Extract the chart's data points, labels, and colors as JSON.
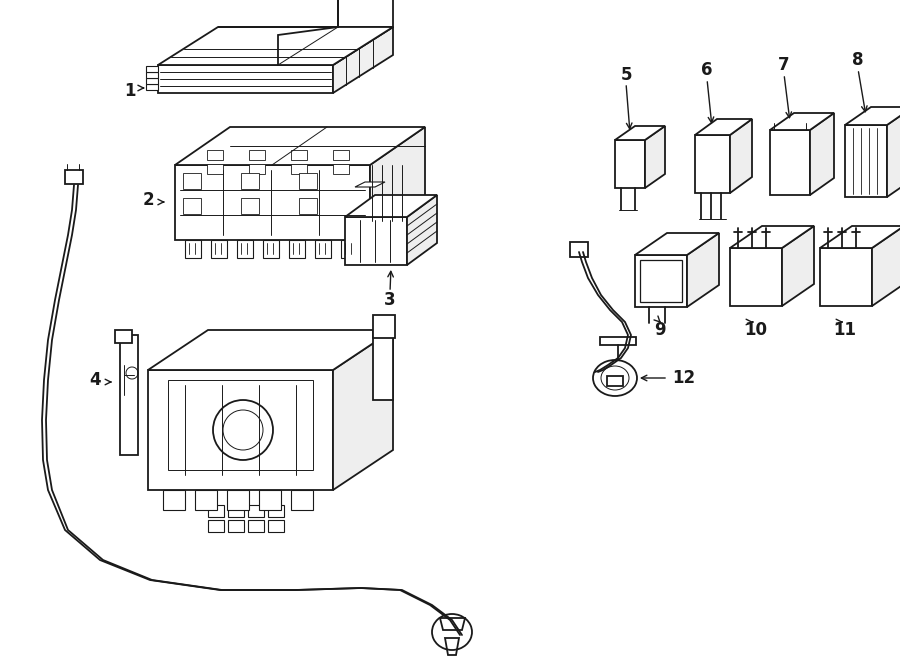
{
  "background_color": "#ffffff",
  "line_color": "#1a1a1a",
  "lw_main": 1.3,
  "lw_thin": 0.7,
  "figsize": [
    9.0,
    6.61
  ],
  "dpi": 100,
  "components": {
    "label_fontsize": 12
  }
}
